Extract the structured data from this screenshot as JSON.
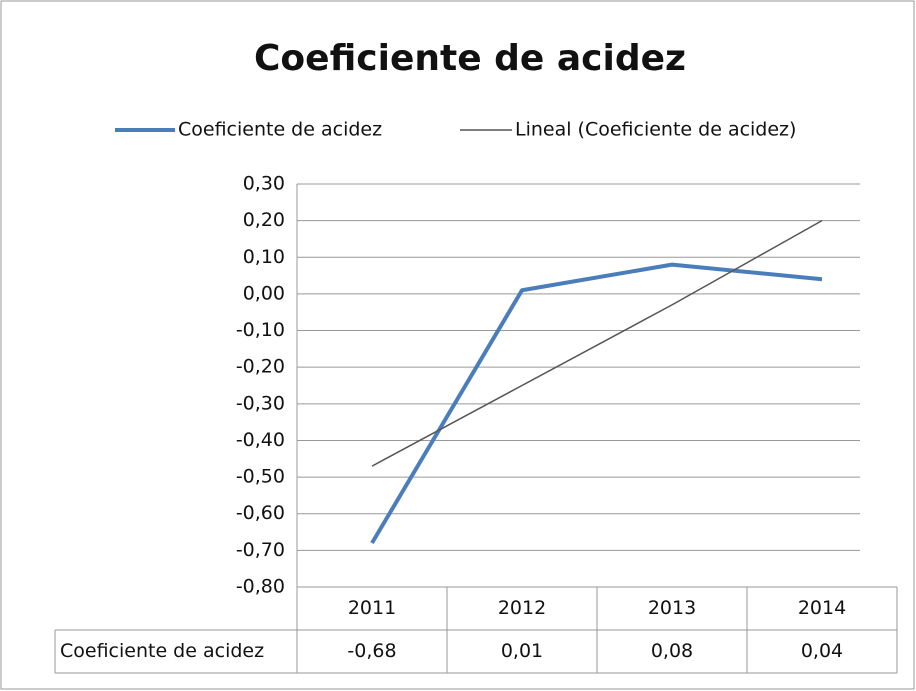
{
  "chart_data": {
    "type": "line",
    "title": "Coeficiente de acidez",
    "categories": [
      "2011",
      "2012",
      "2013",
      "2014"
    ],
    "series": [
      {
        "name": "Coeficiente de acidez",
        "color": "#4a7ebb",
        "values": [
          -0.68,
          0.01,
          0.08,
          0.04
        ],
        "value_labels": [
          "-0,68",
          "0,01",
          "0,08",
          "0,04"
        ]
      },
      {
        "name": "Lineal (Coeficiente de acidez)",
        "color": "#555555",
        "values": [
          -0.47,
          -0.25,
          -0.03,
          0.2
        ]
      }
    ],
    "ylim": [
      -0.8,
      0.3
    ],
    "yticks": [
      {
        "value": 0.3,
        "label": "0,30"
      },
      {
        "value": 0.2,
        "label": "0,20"
      },
      {
        "value": 0.1,
        "label": "0,10"
      },
      {
        "value": 0,
        "label": "0,00"
      },
      {
        "value": -0.1,
        "label": "-0,10"
      },
      {
        "value": -0.2,
        "label": "-0,20"
      },
      {
        "value": -0.3,
        "label": "-0,30"
      },
      {
        "value": -0.4,
        "label": "-0,40"
      },
      {
        "value": -0.5,
        "label": "-0,50"
      },
      {
        "value": -0.6,
        "label": "-0,60"
      },
      {
        "value": -0.7,
        "label": "-0,70"
      },
      {
        "value": -0.8,
        "label": "-0,80"
      }
    ],
    "grid": true,
    "legend": "top"
  }
}
